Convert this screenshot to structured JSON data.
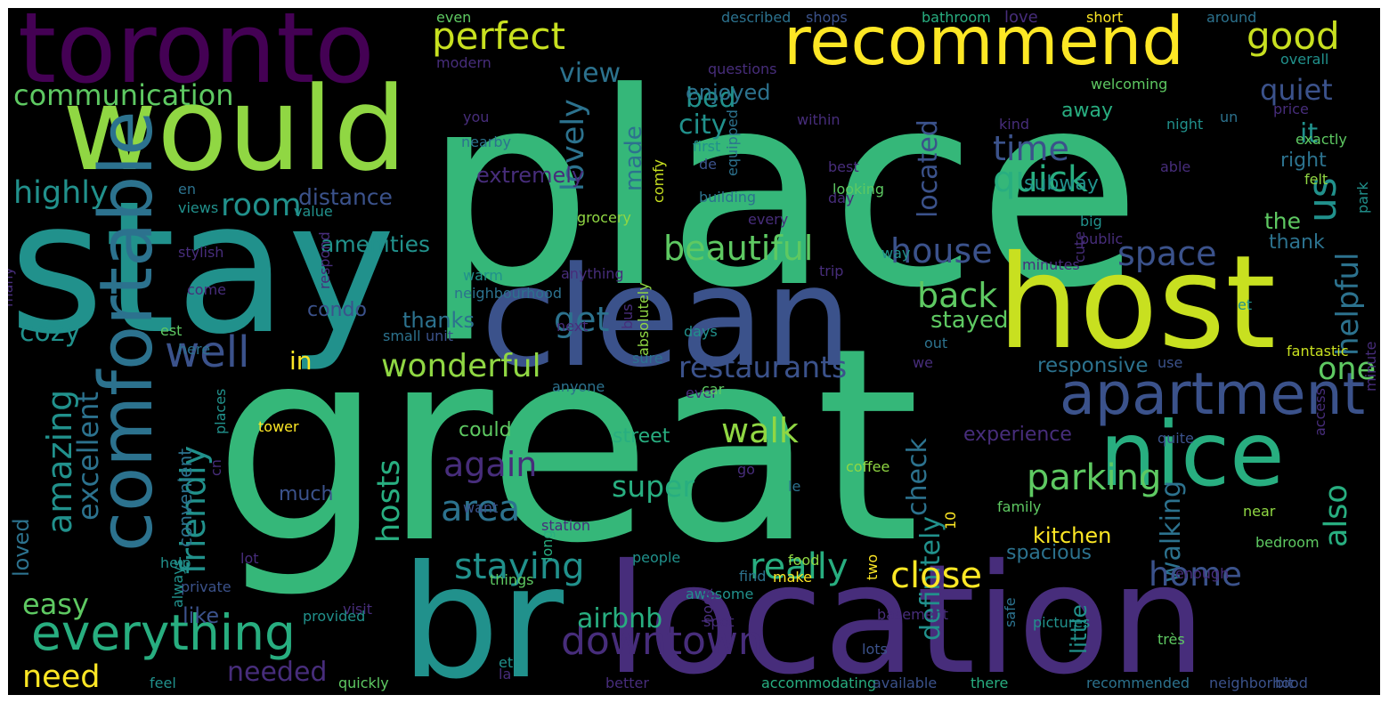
{
  "palette": {
    "purple": "#440154",
    "indigo": "#472d7b",
    "slate": "#3b528b",
    "blue": "#2c728e",
    "teal": "#21918c",
    "sea": "#28ae80",
    "green": "#35b779",
    "lime": "#5ec962",
    "yellowgreen": "#90d743",
    "yellow": "#c8e020",
    "gold": "#fde725"
  },
  "words": [
    {
      "text": "place",
      "color": "green"
    },
    {
      "text": "great",
      "color": "green"
    },
    {
      "text": "stay",
      "color": "teal"
    },
    {
      "text": "toronto",
      "color": "purple"
    },
    {
      "text": "would",
      "color": "yellowgreen"
    },
    {
      "text": "recommend",
      "color": "gold"
    },
    {
      "text": "host",
      "color": "yellow"
    },
    {
      "text": "clean",
      "color": "slate"
    },
    {
      "text": "br",
      "color": "teal"
    },
    {
      "text": "location",
      "color": "indigo"
    },
    {
      "text": "nice",
      "color": "sea"
    },
    {
      "text": "apartment",
      "color": "slate"
    },
    {
      "text": "comfortable",
      "color": "blue"
    },
    {
      "text": "everything",
      "color": "sea"
    },
    {
      "text": "perfect",
      "color": "yellow"
    },
    {
      "text": "good",
      "color": "yellow"
    },
    {
      "text": "communication",
      "color": "lime"
    },
    {
      "text": "view",
      "color": "blue"
    },
    {
      "text": "quiet",
      "color": "slate"
    },
    {
      "text": "bed",
      "color": "teal"
    },
    {
      "text": "city",
      "color": "teal"
    },
    {
      "text": "enjoyed",
      "color": "blue"
    },
    {
      "text": "it",
      "color": "teal"
    },
    {
      "text": "time",
      "color": "slate"
    },
    {
      "text": "us",
      "color": "teal"
    },
    {
      "text": "highly",
      "color": "teal"
    },
    {
      "text": "room",
      "color": "teal"
    },
    {
      "text": "quick",
      "color": "sea"
    },
    {
      "text": "located",
      "color": "slate"
    },
    {
      "text": "lovely",
      "color": "blue"
    },
    {
      "text": "made",
      "color": "blue"
    },
    {
      "text": "distance",
      "color": "slate"
    },
    {
      "text": "beautiful",
      "color": "lime"
    },
    {
      "text": "house",
      "color": "slate"
    },
    {
      "text": "space",
      "color": "slate"
    },
    {
      "text": "get",
      "color": "blue"
    },
    {
      "text": "amenities",
      "color": "teal"
    },
    {
      "text": "well",
      "color": "slate"
    },
    {
      "text": "back",
      "color": "lime"
    },
    {
      "text": "helpful",
      "color": "blue"
    },
    {
      "text": "cozy",
      "color": "teal"
    },
    {
      "text": "in",
      "color": "gold"
    },
    {
      "text": "wonderful",
      "color": "yellowgreen"
    },
    {
      "text": "restaurants",
      "color": "slate"
    },
    {
      "text": "one",
      "color": "lime"
    },
    {
      "text": "thanks",
      "color": "blue"
    },
    {
      "text": "condo",
      "color": "slate"
    },
    {
      "text": "stayed",
      "color": "lime"
    },
    {
      "text": "responsive",
      "color": "blue"
    },
    {
      "text": "amazing",
      "color": "teal"
    },
    {
      "text": "excellent",
      "color": "blue"
    },
    {
      "text": "friendly",
      "color": "teal"
    },
    {
      "text": "again",
      "color": "indigo"
    },
    {
      "text": "walk",
      "color": "yellowgreen"
    },
    {
      "text": "check",
      "color": "blue"
    },
    {
      "text": "definitely",
      "color": "teal"
    },
    {
      "text": "walking",
      "color": "blue"
    },
    {
      "text": "parking",
      "color": "lime"
    },
    {
      "text": "also",
      "color": "sea"
    },
    {
      "text": "area",
      "color": "blue"
    },
    {
      "text": "super",
      "color": "sea"
    },
    {
      "text": "hosts",
      "color": "sea"
    },
    {
      "text": "staying",
      "color": "teal"
    },
    {
      "text": "really",
      "color": "sea"
    },
    {
      "text": "close",
      "color": "gold"
    },
    {
      "text": "home",
      "color": "slate"
    },
    {
      "text": "downtown",
      "color": "indigo"
    },
    {
      "text": "easy",
      "color": "lime"
    },
    {
      "text": "airbnb",
      "color": "sea"
    },
    {
      "text": "need",
      "color": "gold"
    },
    {
      "text": "needed",
      "color": "indigo"
    },
    {
      "text": "like",
      "color": "slate"
    },
    {
      "text": "loved",
      "color": "blue"
    },
    {
      "text": "convenient",
      "color": "blue"
    },
    {
      "text": "experience",
      "color": "indigo"
    },
    {
      "text": "kitchen",
      "color": "gold"
    },
    {
      "text": "little",
      "color": "teal"
    },
    {
      "text": "spacious",
      "color": "blue"
    },
    {
      "text": "could",
      "color": "lime"
    },
    {
      "text": "street",
      "color": "sea"
    },
    {
      "text": "much",
      "color": "slate"
    },
    {
      "text": "subway",
      "color": "teal"
    },
    {
      "text": "the",
      "color": "lime"
    },
    {
      "text": "thank",
      "color": "blue"
    },
    {
      "text": "right",
      "color": "blue"
    },
    {
      "text": "away",
      "color": "sea"
    },
    {
      "text": "even",
      "color": "lime"
    },
    {
      "text": "described",
      "color": "blue"
    },
    {
      "text": "shops",
      "color": "slate"
    },
    {
      "text": "bathroom",
      "color": "sea"
    },
    {
      "text": "love",
      "color": "indigo"
    },
    {
      "text": "short",
      "color": "gold"
    },
    {
      "text": "around",
      "color": "blue"
    },
    {
      "text": "modern",
      "color": "indigo"
    },
    {
      "text": "questions",
      "color": "indigo"
    },
    {
      "text": "overall",
      "color": "teal"
    },
    {
      "text": "welcoming",
      "color": "lime"
    },
    {
      "text": "you",
      "color": "indigo"
    },
    {
      "text": "un",
      "color": "blue"
    },
    {
      "text": "within",
      "color": "indigo"
    },
    {
      "text": "kind",
      "color": "indigo"
    },
    {
      "text": "price",
      "color": "indigo"
    },
    {
      "text": "night",
      "color": "teal"
    },
    {
      "text": "nearby",
      "color": "blue"
    },
    {
      "text": "first",
      "color": "teal"
    },
    {
      "text": "exactly",
      "color": "lime"
    },
    {
      "text": "comfy",
      "color": "yellow"
    },
    {
      "text": "equipped",
      "color": "blue"
    },
    {
      "text": "de",
      "color": "slate"
    },
    {
      "text": "park",
      "color": "teal"
    },
    {
      "text": "extremely",
      "color": "indigo"
    },
    {
      "text": "best",
      "color": "indigo"
    },
    {
      "text": "able",
      "color": "indigo"
    },
    {
      "text": "felt",
      "color": "yellowgreen"
    },
    {
      "text": "building",
      "color": "blue"
    },
    {
      "text": "looking",
      "color": "lime"
    },
    {
      "text": "day",
      "color": "indigo"
    },
    {
      "text": "en",
      "color": "blue"
    },
    {
      "text": "views",
      "color": "teal"
    },
    {
      "text": "value",
      "color": "teal"
    },
    {
      "text": "grocery",
      "color": "yellowgreen"
    },
    {
      "text": "every",
      "color": "indigo"
    },
    {
      "text": "big",
      "color": "teal"
    },
    {
      "text": "public",
      "color": "indigo"
    },
    {
      "text": "cute",
      "color": "indigo"
    },
    {
      "text": "many",
      "color": "indigo"
    },
    {
      "text": "respond",
      "color": "indigo"
    },
    {
      "text": "stylish",
      "color": "indigo"
    },
    {
      "text": "come",
      "color": "indigo"
    },
    {
      "text": "warm",
      "color": "teal"
    },
    {
      "text": "bus",
      "color": "indigo"
    },
    {
      "text": "absolutely",
      "color": "yellowgreen"
    },
    {
      "text": "anything",
      "color": "indigo"
    },
    {
      "text": "way",
      "color": "teal"
    },
    {
      "text": "trip",
      "color": "indigo"
    },
    {
      "text": "minutes",
      "color": "indigo"
    },
    {
      "text": "minute",
      "color": "indigo"
    },
    {
      "text": "neighbourhood",
      "color": "blue"
    },
    {
      "text": "et",
      "color": "teal"
    },
    {
      "text": "est",
      "color": "lime"
    },
    {
      "text": "next",
      "color": "indigo"
    },
    {
      "text": "days",
      "color": "teal"
    },
    {
      "text": "small",
      "color": "blue"
    },
    {
      "text": "unit",
      "color": "slate"
    },
    {
      "text": "out",
      "color": "blue"
    },
    {
      "text": "we",
      "color": "indigo"
    },
    {
      "text": "use",
      "color": "slate"
    },
    {
      "text": "here",
      "color": "blue"
    },
    {
      "text": "sure",
      "color": "blue"
    },
    {
      "text": "ever",
      "color": "indigo"
    },
    {
      "text": "anyone",
      "color": "blue"
    },
    {
      "text": "car",
      "color": "lime"
    },
    {
      "text": "places",
      "color": "teal"
    },
    {
      "text": "tower",
      "color": "gold"
    },
    {
      "text": "cn",
      "color": "indigo"
    },
    {
      "text": "quite",
      "color": "slate"
    },
    {
      "text": "access",
      "color": "indigo"
    },
    {
      "text": "coffee",
      "color": "yellowgreen"
    },
    {
      "text": "go",
      "color": "indigo"
    },
    {
      "text": "le",
      "color": "blue"
    },
    {
      "text": "10",
      "color": "gold"
    },
    {
      "text": "want",
      "color": "slate"
    },
    {
      "text": "station",
      "color": "indigo"
    },
    {
      "text": "family",
      "color": "lime"
    },
    {
      "text": "near",
      "color": "yellowgreen"
    },
    {
      "text": "bedroom",
      "color": "lime"
    },
    {
      "text": "enough",
      "color": "indigo"
    },
    {
      "text": "two",
      "color": "gold"
    },
    {
      "text": "food",
      "color": "yellowgreen"
    },
    {
      "text": "make",
      "color": "gold"
    },
    {
      "text": "lot",
      "color": "indigo"
    },
    {
      "text": "people",
      "color": "teal"
    },
    {
      "text": "help",
      "color": "teal"
    },
    {
      "text": "long",
      "color": "sea"
    },
    {
      "text": "private",
      "color": "slate"
    },
    {
      "text": "things",
      "color": "lime"
    },
    {
      "text": "awesome",
      "color": "teal"
    },
    {
      "text": "find",
      "color": "blue"
    },
    {
      "text": "always",
      "color": "teal"
    },
    {
      "text": "visit",
      "color": "indigo"
    },
    {
      "text": "book",
      "color": "indigo"
    },
    {
      "text": "provided",
      "color": "teal"
    },
    {
      "text": "basement",
      "color": "indigo"
    },
    {
      "text": "spot",
      "color": "indigo"
    },
    {
      "text": "safe",
      "color": "blue"
    },
    {
      "text": "pictures",
      "color": "teal"
    },
    {
      "text": "lots",
      "color": "slate"
    },
    {
      "text": "très",
      "color": "lime"
    },
    {
      "text": "etc",
      "color": "teal"
    },
    {
      "text": "la",
      "color": "indigo"
    },
    {
      "text": "feel",
      "color": "teal"
    },
    {
      "text": "quickly",
      "color": "lime"
    },
    {
      "text": "better",
      "color": "indigo"
    },
    {
      "text": "accommodating",
      "color": "sea"
    },
    {
      "text": "available",
      "color": "slate"
    },
    {
      "text": "there",
      "color": "sea"
    },
    {
      "text": "recommended",
      "color": "blue"
    },
    {
      "text": "neighborhood",
      "color": "slate"
    },
    {
      "text": "bit",
      "color": "slate"
    },
    {
      "text": "fantastic",
      "color": "yellow"
    }
  ]
}
